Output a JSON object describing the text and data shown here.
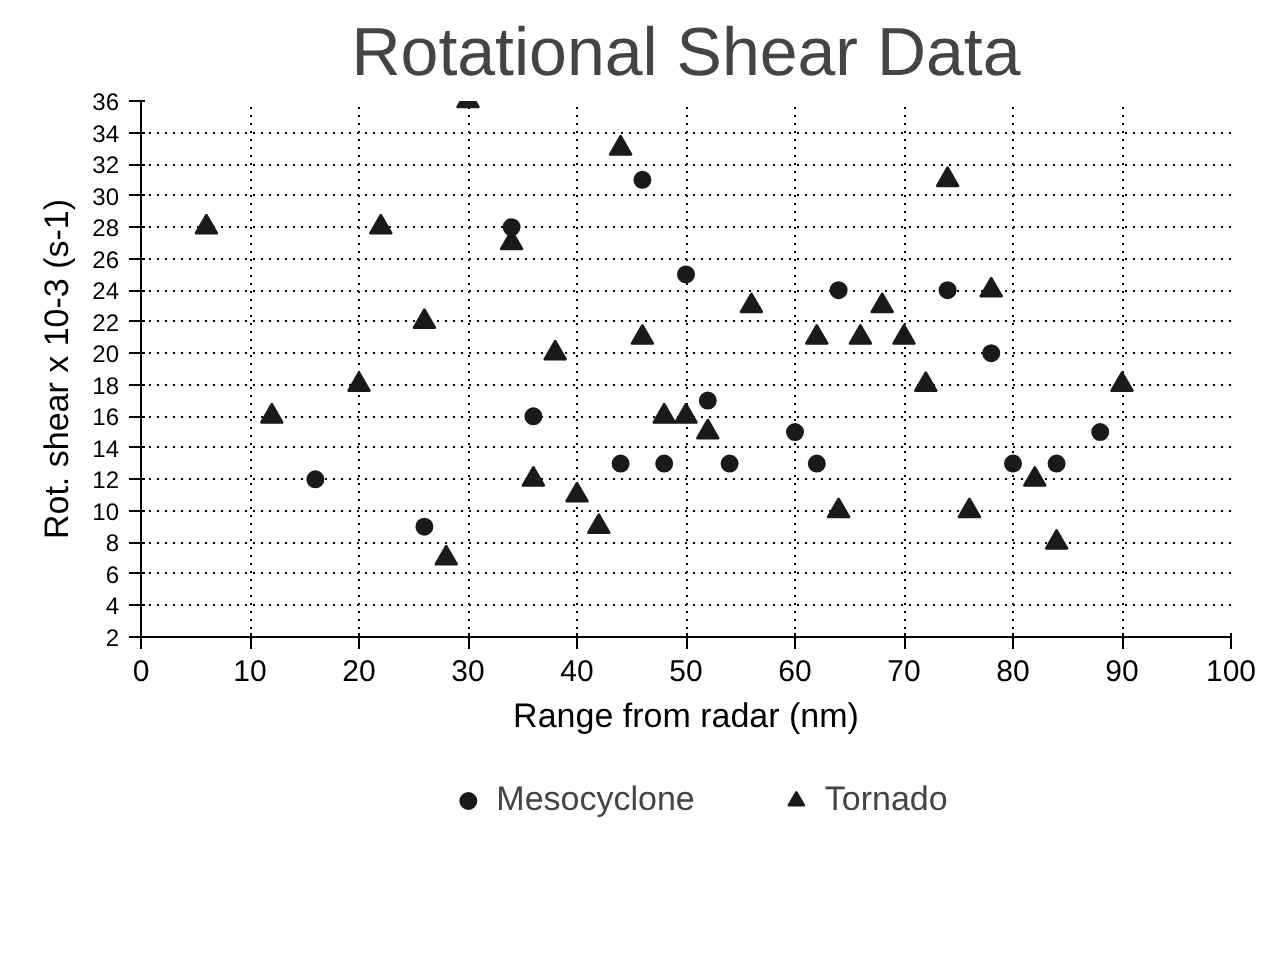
{
  "chart_data": {
    "type": "scatter",
    "title": "Rotational Shear Data",
    "xlabel": "Range from radar (nm)",
    "ylabel": "Rot. shear x 10-3 (s-1)",
    "xlim": [
      0,
      100
    ],
    "xticks": [
      0,
      10,
      20,
      30,
      40,
      50,
      60,
      70,
      80,
      90,
      100
    ],
    "ylim": [
      2,
      36
    ],
    "yticks": [
      2,
      4,
      6,
      8,
      10,
      12,
      14,
      16,
      18,
      20,
      22,
      24,
      26,
      28,
      30,
      32,
      34,
      36
    ],
    "grid": true,
    "legend": "bottom",
    "series": [
      {
        "name": "Mesocyclone",
        "color": "#1a1a1a",
        "marker": "circle",
        "x": [
          16,
          26,
          34,
          36,
          44,
          46,
          48,
          50,
          52,
          54,
          60,
          62,
          64,
          74,
          78,
          80,
          84,
          88
        ],
        "values": [
          12,
          9,
          28,
          16,
          13,
          31,
          13,
          25,
          17,
          13,
          15,
          13,
          24,
          24,
          20,
          13,
          13,
          15
        ]
      },
      {
        "name": "Tornado",
        "color": "#1a1a1a",
        "marker": "triangle",
        "x": [
          6,
          12,
          20,
          22,
          26,
          28,
          30,
          34,
          36,
          38,
          40,
          42,
          44,
          46,
          48,
          50,
          52,
          56,
          62,
          64,
          66,
          68,
          70,
          72,
          74,
          76,
          78,
          82,
          84,
          90
        ],
        "values": [
          28,
          16,
          18,
          28,
          22,
          7,
          36,
          27,
          12,
          20,
          11,
          9,
          33,
          21,
          16,
          16,
          15,
          23,
          21,
          10,
          21,
          23,
          21,
          18,
          31,
          10,
          24,
          12,
          8,
          18
        ]
      }
    ]
  }
}
